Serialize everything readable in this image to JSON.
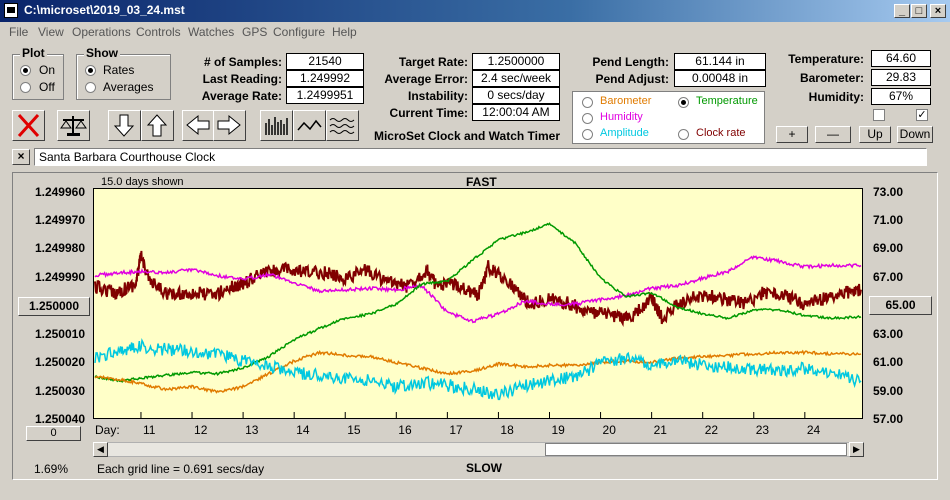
{
  "window": {
    "title": "C:\\microset\\2019_03_24.mst"
  },
  "menu": [
    "File",
    "View",
    "Operations",
    "Controls",
    "Watches",
    "GPS",
    "Configure",
    "Help"
  ],
  "plot_group": {
    "label": "Plot",
    "on": "On",
    "off": "Off",
    "selected": "On"
  },
  "show_group": {
    "label": "Show",
    "rates": "Rates",
    "averages": "Averages",
    "selected": "Rates"
  },
  "stats": {
    "samples_label": "# of Samples:",
    "samples": "21540",
    "last_reading_label": "Last Reading:",
    "last_reading": "1.249992",
    "average_rate_label": "Average Rate:",
    "average_rate": "1.2499951"
  },
  "rates": {
    "target_rate_label": "Target Rate:",
    "target_rate": "1.2500000",
    "average_error_label": "Average Error:",
    "average_error": "2.4 sec/week",
    "instability_label": "Instability:",
    "instability": "0 secs/day",
    "current_time_label": "Current Time:",
    "current_time": "12:00:04 AM"
  },
  "app_subtitle": "MicroSet Clock and Watch Timer",
  "pendulum": {
    "length_label": "Pend Length:",
    "length": "61.144 in",
    "adjust_label": "Pend Adjust:",
    "adjust": "0.00048 in"
  },
  "aux_options": {
    "barometer": "Barometer",
    "temperature": "Temperature",
    "humidity": "Humidity",
    "amplitude": "Amplitude",
    "clock_rate": "Clock rate",
    "selected": "Temperature",
    "colors": {
      "barometer": "#e07b00",
      "temperature": "#009900",
      "humidity": "#e000e0",
      "amplitude": "#00c8e0",
      "clock_rate": "#800000"
    }
  },
  "environment": {
    "temperature_label": "Temperature:",
    "temperature": "64.60",
    "barometer_label": "Barometer:",
    "barometer": "29.83",
    "humidity_label": "Humidity:",
    "humidity": "67%",
    "check1": false,
    "check2": true
  },
  "scale_buttons": {
    "plus": "+",
    "minus": "—",
    "up": "Up",
    "down": "Down"
  },
  "clock_name": "Santa Barbara Courthouse Clock",
  "chart_header": {
    "days_shown": "15.0 days shown",
    "fast": "FAST",
    "slow": "SLOW",
    "grid_note": "Each grid line = 0.691 secs/day",
    "percent": "1.69%",
    "day_label": "Day:"
  },
  "left_controls": {
    "center_value": "1.250000",
    "zero": "0"
  },
  "right_controls": {
    "center_value": "65.00"
  },
  "chart_data": {
    "type": "line",
    "left_axis_ticks": [
      "1.249960",
      "1.249970",
      "1.249980",
      "1.249990",
      "1.250000",
      "1.250010",
      "1.250020",
      "1.250030",
      "1.250040"
    ],
    "right_axis_ticks": [
      "73.00",
      "71.00",
      "69.00",
      "67.00",
      "65.00",
      "63.00",
      "61.00",
      "59.00",
      "57.00"
    ],
    "left_ylim": [
      1.24996,
      1.25004
    ],
    "right_ylim": [
      57,
      73
    ],
    "xlim": [
      10.1,
      25.1
    ],
    "x_ticks": [
      11,
      12,
      13,
      14,
      15,
      16,
      17,
      18,
      19,
      20,
      21,
      22,
      23,
      24
    ],
    "grid": false,
    "series": [
      {
        "name": "Clock rate",
        "color": "#800000",
        "axis": "left",
        "noise": 2.4e-06,
        "x": [
          10.1,
          10.5,
          10.9,
          11.0,
          11.2,
          11.6,
          12.0,
          12.4,
          12.8,
          13.0,
          13.4,
          13.8,
          14.2,
          14.6,
          15.0,
          15.4,
          15.8,
          16.2,
          16.6,
          16.8,
          17.2,
          17.6,
          17.8,
          18.2,
          18.6,
          19.0,
          19.4,
          19.8,
          20.2,
          20.6,
          21.0,
          21.2,
          21.6,
          22.0,
          22.4,
          22.8,
          23.2,
          23.6,
          24.0,
          24.4,
          24.8,
          25.1
        ],
        "y": [
          1.249994,
          1.249996,
          1.249993,
          1.249983,
          1.249993,
          1.249997,
          1.249996,
          1.249997,
          1.249994,
          1.249993,
          1.249989,
          1.249988,
          1.249989,
          1.249989,
          1.249991,
          1.249988,
          1.249992,
          1.249994,
          1.249988,
          1.249994,
          1.249993,
          1.249997,
          1.249987,
          1.249992,
          1.25,
          1.249998,
          1.25,
          1.250003,
          1.250004,
          1.250005,
          1.249998,
          1.250005,
          1.249999,
          1.249997,
          1.249998,
          1.25,
          1.249996,
          1.249997,
          1.25,
          1.249998,
          1.249996,
          1.249995
        ]
      },
      {
        "name": "Humidity",
        "color": "#e000e0",
        "axis": "right",
        "noise": 0.12,
        "x": [
          10.1,
          10.6,
          11.0,
          11.5,
          12.0,
          12.5,
          13.0,
          13.5,
          14.0,
          14.5,
          15.0,
          15.5,
          16.0,
          16.5,
          17.0,
          17.5,
          18.0,
          18.5,
          19.0,
          19.5,
          20.0,
          20.5,
          21.0,
          21.5,
          22.0,
          22.5,
          23.0,
          23.5,
          24.0,
          24.5,
          25.1
        ],
        "y": [
          67.0,
          67.2,
          67.3,
          67.2,
          67.4,
          67.0,
          66.7,
          67.1,
          66.5,
          65.9,
          66.0,
          66.1,
          66.0,
          66.3,
          64.4,
          63.8,
          64.3,
          65.2,
          65.0,
          65.0,
          65.3,
          65.6,
          66.1,
          66.3,
          66.8,
          67.3,
          68.3,
          68.0,
          67.6,
          67.7,
          67.7
        ]
      },
      {
        "name": "Temperature",
        "color": "#009900",
        "axis": "right",
        "noise": 0.08,
        "x": [
          10.1,
          10.6,
          11.0,
          11.5,
          12.0,
          12.5,
          13.0,
          13.5,
          14.0,
          14.5,
          15.0,
          15.5,
          16.0,
          16.5,
          17.0,
          17.5,
          18.0,
          18.5,
          19.0,
          19.5,
          20.0,
          20.5,
          21.0,
          21.5,
          22.0,
          22.5,
          23.0,
          23.5,
          24.0,
          24.5,
          25.1
        ],
        "y": [
          59.9,
          59.6,
          59.8,
          60.0,
          60.2,
          60.1,
          60.5,
          61.3,
          62.5,
          63.3,
          64.0,
          64.3,
          65.0,
          66.4,
          66.6,
          68.1,
          69.5,
          70.0,
          70.6,
          69.3,
          66.8,
          65.5,
          65.8,
          64.8,
          64.3,
          64.0,
          64.6,
          64.6,
          64.2,
          64.0,
          64.1
        ]
      },
      {
        "name": "Barometer",
        "color": "#e07b00",
        "axis": "right",
        "noise": 0.1,
        "x": [
          10.1,
          10.6,
          11.0,
          11.5,
          12.0,
          12.5,
          13.0,
          13.5,
          14.0,
          14.5,
          15.0,
          15.5,
          16.0,
          16.5,
          17.0,
          17.5,
          18.0,
          18.5,
          19.0,
          19.5,
          20.0,
          20.5,
          21.0,
          21.5,
          22.0,
          22.5,
          23.0,
          23.5,
          24.0,
          24.5,
          25.1
        ],
        "y": [
          59.9,
          59.7,
          59.4,
          59.0,
          59.2,
          58.8,
          59.2,
          60.1,
          61.0,
          61.6,
          61.4,
          61.3,
          60.9,
          60.5,
          60.1,
          60.3,
          60.8,
          60.6,
          60.7,
          60.7,
          60.9,
          61.0,
          60.9,
          61.2,
          61.3,
          61.4,
          61.5,
          61.6,
          61.6,
          61.5,
          61.5
        ]
      },
      {
        "name": "Amplitude",
        "color": "#00c8e0",
        "axis": "right",
        "noise": 0.45,
        "x": [
          10.1,
          10.6,
          11.0,
          11.5,
          12.0,
          12.5,
          13.0,
          13.5,
          14.0,
          14.5,
          15.0,
          15.5,
          16.0,
          16.5,
          17.0,
          17.5,
          18.0,
          18.5,
          19.0,
          19.5,
          20.0,
          20.5,
          21.0,
          21.5,
          22.0,
          22.5,
          23.0,
          23.5,
          24.0,
          24.5,
          25.1
        ],
        "y": [
          61.2,
          61.8,
          62.0,
          61.8,
          61.7,
          61.5,
          61.0,
          60.6,
          60.2,
          60.0,
          59.8,
          59.6,
          59.2,
          59.5,
          59.3,
          59.0,
          58.6,
          59.3,
          59.6,
          59.9,
          60.8,
          61.2,
          60.7,
          61.0,
          60.7,
          60.6,
          60.4,
          60.3,
          60.5,
          60.2,
          59.6
        ]
      }
    ]
  }
}
